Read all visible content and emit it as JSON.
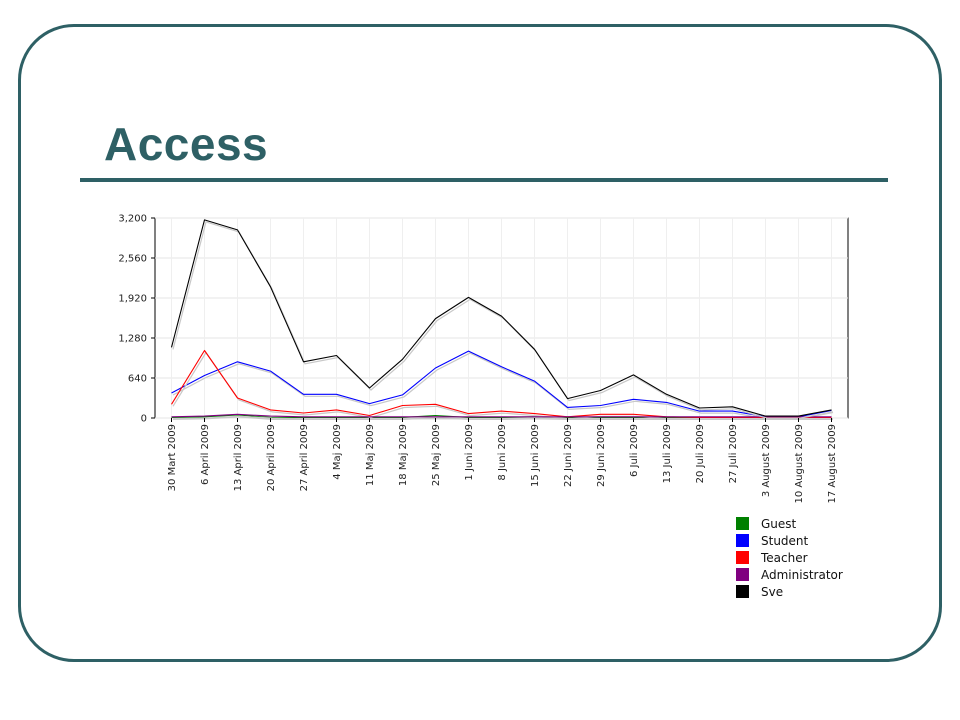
{
  "slide": {
    "title": "Access"
  },
  "colors": {
    "frame": "#2e6065",
    "title": "#2e6065"
  },
  "chart_data": {
    "type": "line",
    "title": "",
    "xlabel": "",
    "ylabel": "",
    "ylim": [
      0,
      3200
    ],
    "yticks": [
      0,
      640,
      1280,
      1920,
      2560,
      3200
    ],
    "ytick_labels": [
      "0",
      "640",
      "1,280",
      "1,920",
      "2,560",
      "3,200"
    ],
    "grid": true,
    "legend_position": "bottom-right",
    "categories": [
      "30 Mart 2009",
      "6 April 2009",
      "13 April 2009",
      "20 April 2009",
      "27 April 2009",
      "4 Maj 2009",
      "11 Maj 2009",
      "18 Maj 2009",
      "25 Maj 2009",
      "1 Juni 2009",
      "8 Juni 2009",
      "15 Juni 2009",
      "22 Juni 2009",
      "29 Juni 2009",
      "6 Juli 2009",
      "13 Juli 2009",
      "20 Juli 2009",
      "27 Juli 2009",
      "3 August 2009",
      "10 August 2009",
      "17 August 2009"
    ],
    "series": [
      {
        "name": "Guest",
        "color": "#008000",
        "values": [
          10,
          20,
          50,
          10,
          10,
          10,
          10,
          10,
          40,
          10,
          10,
          20,
          10,
          10,
          10,
          10,
          10,
          10,
          10,
          10,
          10
        ]
      },
      {
        "name": "Student",
        "color": "#0000ff",
        "values": [
          400,
          680,
          900,
          750,
          380,
          380,
          230,
          370,
          800,
          1070,
          820,
          590,
          170,
          200,
          300,
          250,
          110,
          110,
          20,
          20,
          120
        ]
      },
      {
        "name": "Teacher",
        "color": "#ff0000",
        "values": [
          220,
          1080,
          320,
          130,
          80,
          130,
          40,
          200,
          220,
          70,
          110,
          70,
          20,
          60,
          60,
          20,
          10,
          10,
          10,
          10,
          10
        ]
      },
      {
        "name": "Administrator",
        "color": "#800080",
        "values": [
          20,
          30,
          60,
          30,
          20,
          20,
          20,
          20,
          20,
          20,
          20,
          20,
          20,
          20,
          20,
          20,
          20,
          20,
          20,
          20,
          20
        ]
      },
      {
        "name": "Sve",
        "color": "#000000",
        "values": [
          1130,
          3170,
          3010,
          2100,
          900,
          1000,
          480,
          940,
          1590,
          1930,
          1630,
          1100,
          310,
          440,
          690,
          380,
          160,
          180,
          30,
          30,
          130
        ]
      }
    ]
  }
}
